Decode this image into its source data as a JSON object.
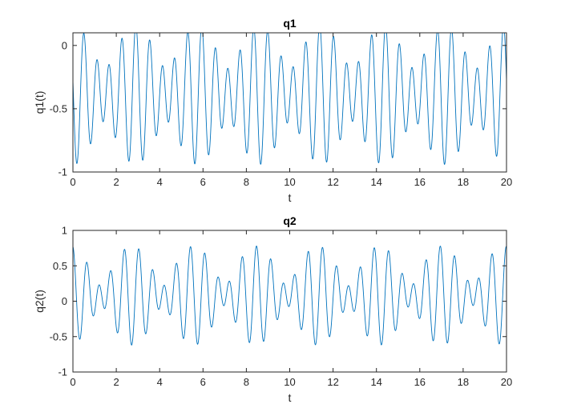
{
  "figure": {
    "background": "#ffffff",
    "axis_color": "#262626",
    "line_color": "#0072BD"
  },
  "chart_data": [
    {
      "type": "line",
      "title": "q1",
      "xlabel": "t",
      "ylabel": "q1(t)",
      "xlim": [
        0,
        20
      ],
      "ylim": [
        -1,
        0.1
      ],
      "xticks": [
        0,
        2,
        4,
        6,
        8,
        10,
        12,
        14,
        16,
        18,
        20
      ],
      "xtick_labels": [
        "0",
        "2",
        "4",
        "6",
        "8",
        "10",
        "12",
        "14",
        "16",
        "18",
        "20"
      ],
      "yticks": [
        -1,
        -0.5,
        0
      ],
      "ytick_labels": [
        "-1",
        "-0.5",
        "0"
      ],
      "grid": false,
      "series": [
        {
          "color": "#0072BD",
          "model": {
            "offset": -0.39,
            "components": [
              {
                "amplitude": 0.38,
                "frequency": 1.65,
                "phase": 1.35
              },
              {
                "amplitude": 0.17,
                "frequency": 1.3,
                "phase": 1.4
              }
            ],
            "t_start": 0,
            "t_end": 20,
            "samples": 2400
          }
        }
      ]
    },
    {
      "type": "line",
      "title": "q2",
      "xlabel": "t",
      "ylabel": "q2(t)",
      "xlim": [
        0,
        20
      ],
      "ylim": [
        -1,
        1
      ],
      "xticks": [
        0,
        2,
        4,
        6,
        8,
        10,
        12,
        14,
        16,
        18,
        20
      ],
      "xtick_labels": [
        "0",
        "2",
        "4",
        "6",
        "8",
        "10",
        "12",
        "14",
        "16",
        "18",
        "20"
      ],
      "yticks": [
        -1,
        -0.5,
        0,
        0.5,
        1
      ],
      "ytick_labels": [
        "-1",
        "-0.5",
        "0",
        "0.5",
        "1"
      ],
      "grid": false,
      "series": [
        {
          "color": "#0072BD",
          "model": {
            "offset": 0.08,
            "components": [
              {
                "amplitude": 0.42,
                "frequency": 1.65,
                "phase": 0.2
              },
              {
                "amplitude": 0.28,
                "frequency": 1.3,
                "phase": -0.1
              }
            ],
            "t_start": 0,
            "t_end": 20,
            "samples": 2400
          }
        }
      ]
    }
  ]
}
